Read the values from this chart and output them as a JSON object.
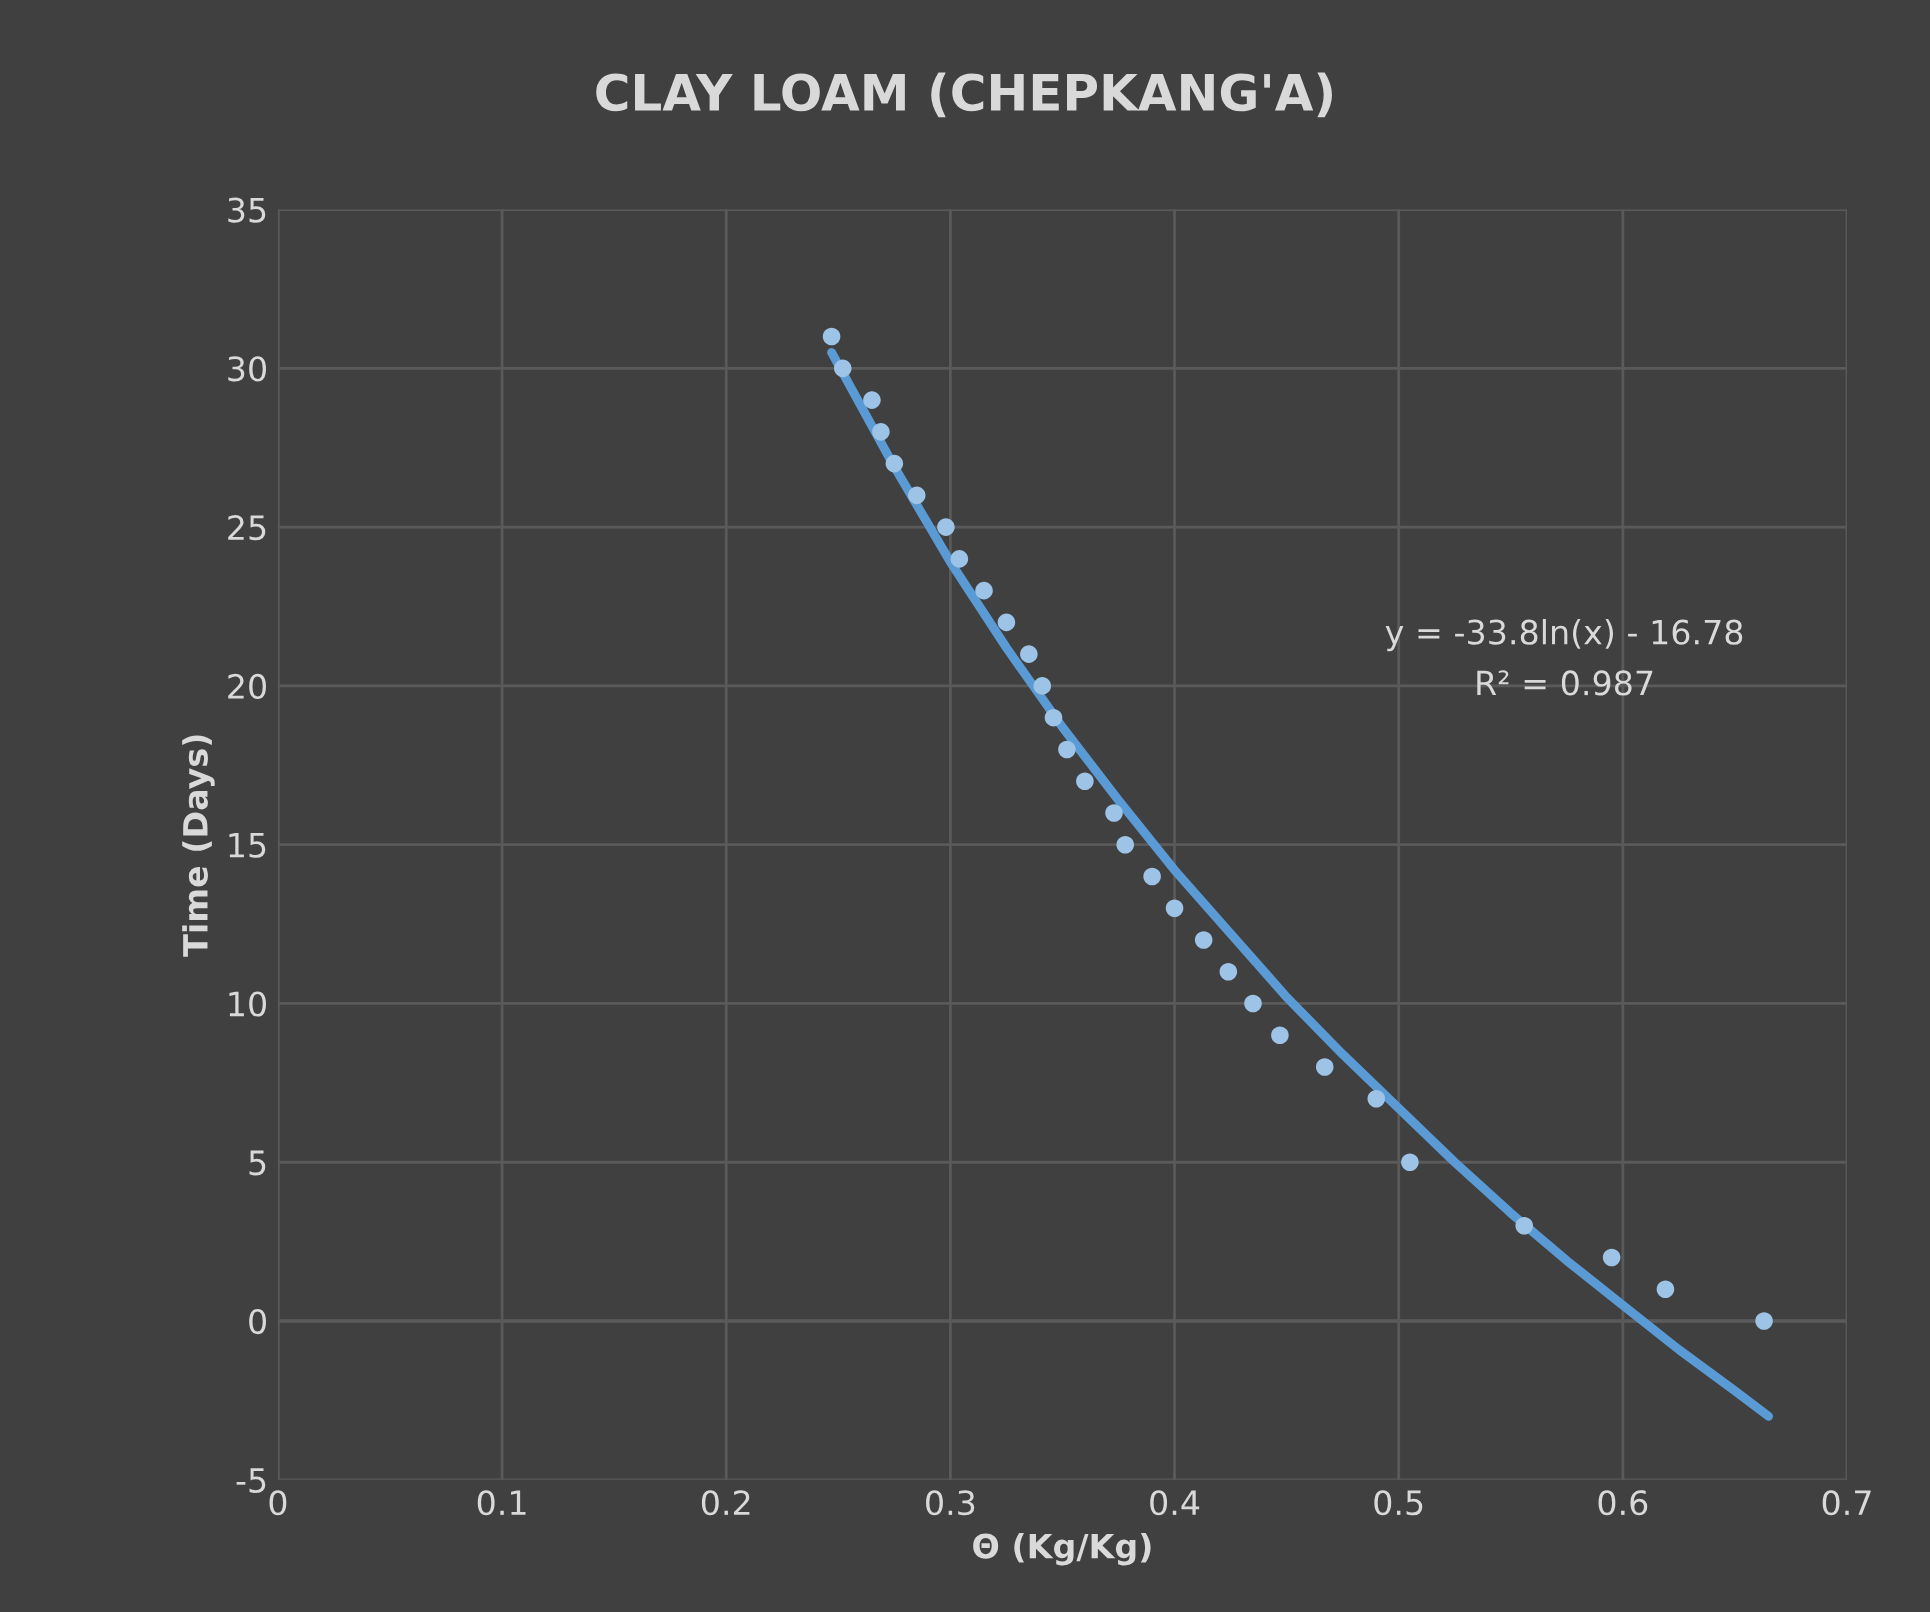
{
  "chart_data": {
    "type": "scatter",
    "title": "CLAY LOAM (CHEPKANG'A)",
    "xlabel": "Θ (Kg/Kg)",
    "ylabel": "Time (Days)",
    "xlim": [
      0,
      0.7
    ],
    "xticks": [
      0,
      0.1,
      0.2,
      0.3,
      0.4,
      0.5,
      0.6,
      0.7
    ],
    "ylim": [
      -5,
      35
    ],
    "yticks": [
      -5,
      0,
      5,
      10,
      15,
      20,
      25,
      30,
      35
    ],
    "grid": true,
    "legend": false,
    "series": [
      {
        "marker": "circle",
        "color": "#9dc3e6",
        "x": [
          0.247,
          0.252,
          0.265,
          0.269,
          0.275,
          0.285,
          0.298,
          0.304,
          0.315,
          0.325,
          0.335,
          0.341,
          0.346,
          0.352,
          0.36,
          0.373,
          0.378,
          0.39,
          0.4,
          0.413,
          0.424,
          0.435,
          0.447,
          0.467,
          0.49,
          0.505,
          0.556,
          0.595,
          0.619,
          0.663
        ],
        "values": [
          31,
          30,
          29,
          28,
          27,
          26,
          25,
          24,
          23,
          22,
          21,
          20,
          19,
          18,
          17,
          16,
          15,
          14,
          13,
          12,
          11,
          10,
          9,
          8,
          7,
          5,
          3,
          2,
          1,
          0
        ]
      },
      {
        "type": "line",
        "marker": "none",
        "color": "#5b9bd5",
        "x": [
          0.247,
          0.275,
          0.3,
          0.325,
          0.35,
          0.375,
          0.4,
          0.425,
          0.45,
          0.475,
          0.5,
          0.525,
          0.55,
          0.575,
          0.6,
          0.625,
          0.65,
          0.665
        ],
        "values": [
          30.5,
          26.9,
          23.9,
          21.2,
          18.7,
          16.4,
          14.2,
          12.2,
          10.2,
          8.4,
          6.7,
          5.0,
          3.4,
          1.9,
          0.5,
          -0.9,
          -2.2,
          -3.0
        ]
      }
    ],
    "annotations": [
      "y = -33.8ln(x) - 16.78",
      "R² = 0.987"
    ]
  }
}
